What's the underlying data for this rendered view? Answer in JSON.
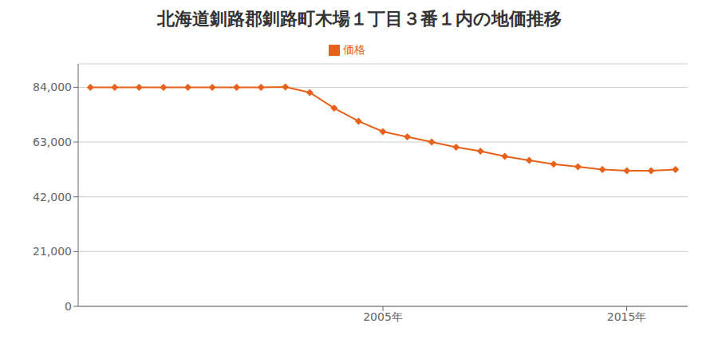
{
  "chart_data": {
    "type": "line",
    "title": "北海道釧路郡釧路町木場１丁目３番１内の地価推移",
    "x": [
      1993,
      1994,
      1995,
      1996,
      1997,
      1998,
      1999,
      2000,
      2001,
      2002,
      2003,
      2004,
      2005,
      2006,
      2007,
      2008,
      2009,
      2010,
      2011,
      2012,
      2013,
      2014,
      2015,
      2016,
      2017
    ],
    "series": [
      {
        "name": "価格",
        "color": "#E8611A",
        "marker": "diamond",
        "line_style": "solid",
        "values": [
          84000,
          84000,
          84000,
          84000,
          84000,
          84000,
          84000,
          84000,
          84100,
          82000,
          76000,
          71000,
          67000,
          65000,
          63000,
          61000,
          59500,
          57500,
          56000,
          54500,
          53500,
          52500,
          52000,
          52000,
          52500
        ]
      }
    ],
    "xlim": [
      1992.5,
      2017.5
    ],
    "xticks": [
      {
        "value": 2005,
        "label": "2005年"
      },
      {
        "value": 2015,
        "label": "2015年"
      }
    ],
    "ylim": [
      0,
      93000
    ],
    "yticks": [
      0,
      {
        "value": 21000,
        "label": "21,000"
      },
      {
        "value": 42000,
        "label": "42,000"
      },
      {
        "value": 63000,
        "label": "63,000"
      },
      {
        "value": 84000,
        "label": "84,000"
      }
    ],
    "grid": "y",
    "legend": "top"
  }
}
